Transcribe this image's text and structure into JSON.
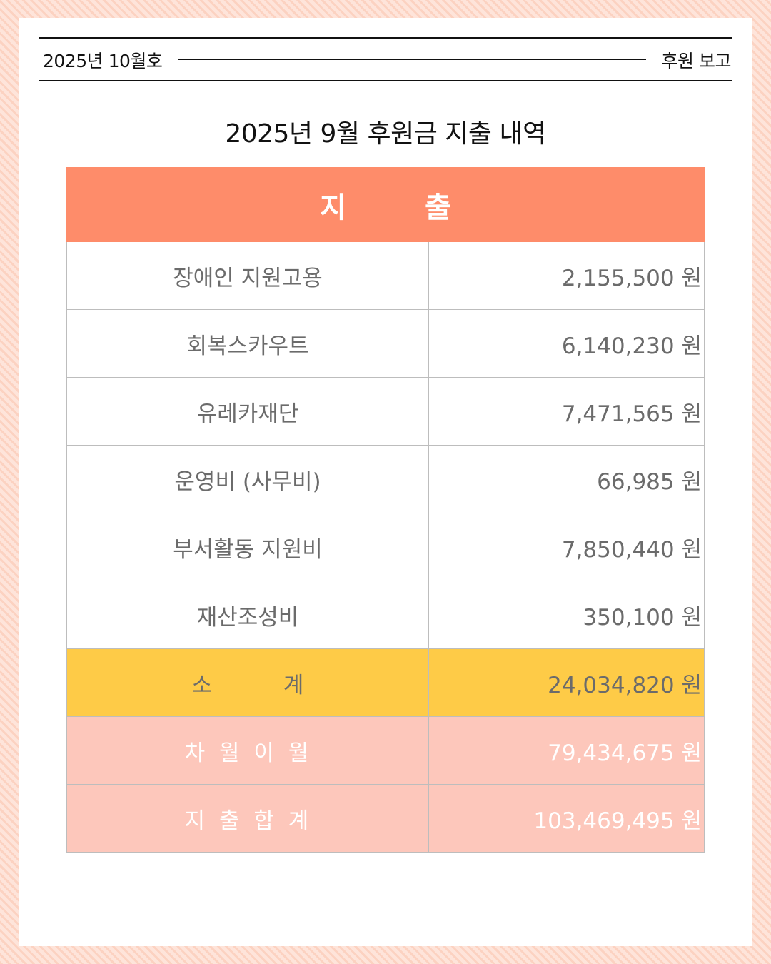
{
  "header": {
    "issue": "2025년 10월호",
    "section": "후원 보고"
  },
  "title": "2025년 9월 후원금 지출 내역",
  "table": {
    "heading": "지 출",
    "rows": [
      {
        "label": "장애인 지원고용",
        "amount": "2,155,500 원"
      },
      {
        "label": "회복스카우트",
        "amount": "6,140,230 원"
      },
      {
        "label": "유레카재단",
        "amount": "7,471,565 원"
      },
      {
        "label": "운영비 (사무비)",
        "amount": "66,985 원"
      },
      {
        "label": "부서활동 지원비",
        "amount": "7,850,440 원"
      },
      {
        "label": "재산조성비",
        "amount": "350,100 원"
      }
    ],
    "subtotal": {
      "label": "소 계",
      "amount": "24,034,820 원"
    },
    "carryover": {
      "label": "차 월 이 월",
      "amount": "79,434,675 원"
    },
    "total": {
      "label": "지 출 합 계",
      "amount": "103,469,495 원"
    }
  },
  "colors": {
    "head": "#fe8c6a",
    "subtotal": "#fecb47",
    "summary": "#fdc7bb"
  }
}
